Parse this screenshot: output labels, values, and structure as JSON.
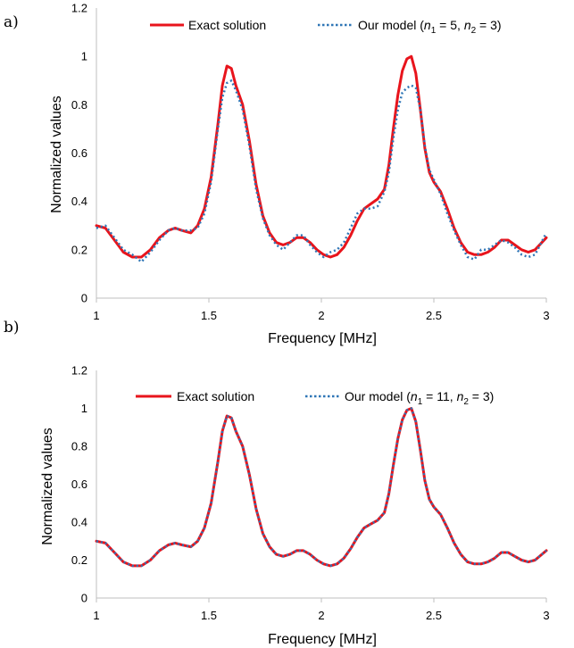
{
  "colors": {
    "exact": "#e8141c",
    "model": "#2e75b6"
  },
  "chart_data": [
    {
      "type": "line",
      "panel_label": "a)",
      "xlabel": "Frequency [MHz]",
      "ylabel": "Normalized values",
      "xlim": [
        1,
        3
      ],
      "ylim": [
        0,
        1.2
      ],
      "xticks": [
        "1",
        "1.5",
        "2",
        "2.5",
        "3"
      ],
      "yticks": [
        "0",
        "0.2",
        "0.4",
        "0.6",
        "0.8",
        "1",
        "1.2"
      ],
      "legend_position": "top",
      "series": [
        {
          "name": "Exact solution",
          "style": "solid",
          "x": [
            1.0,
            1.04,
            1.08,
            1.12,
            1.16,
            1.2,
            1.24,
            1.28,
            1.32,
            1.35,
            1.38,
            1.42,
            1.45,
            1.48,
            1.51,
            1.54,
            1.56,
            1.58,
            1.6,
            1.62,
            1.65,
            1.68,
            1.71,
            1.74,
            1.77,
            1.8,
            1.83,
            1.86,
            1.89,
            1.92,
            1.95,
            1.98,
            2.01,
            2.04,
            2.07,
            2.1,
            2.13,
            2.16,
            2.19,
            2.22,
            2.25,
            2.28,
            2.3,
            2.32,
            2.34,
            2.36,
            2.38,
            2.4,
            2.42,
            2.44,
            2.46,
            2.48,
            2.5,
            2.53,
            2.56,
            2.59,
            2.62,
            2.65,
            2.68,
            2.71,
            2.74,
            2.77,
            2.8,
            2.83,
            2.86,
            2.89,
            2.92,
            2.95,
            3.0
          ],
          "y": [
            0.3,
            0.29,
            0.24,
            0.19,
            0.17,
            0.17,
            0.2,
            0.25,
            0.28,
            0.29,
            0.28,
            0.27,
            0.3,
            0.37,
            0.5,
            0.72,
            0.88,
            0.96,
            0.95,
            0.88,
            0.8,
            0.65,
            0.47,
            0.34,
            0.27,
            0.23,
            0.22,
            0.23,
            0.25,
            0.25,
            0.23,
            0.2,
            0.18,
            0.17,
            0.18,
            0.21,
            0.26,
            0.32,
            0.37,
            0.39,
            0.41,
            0.45,
            0.55,
            0.7,
            0.84,
            0.94,
            0.99,
            1.0,
            0.93,
            0.78,
            0.62,
            0.52,
            0.48,
            0.44,
            0.37,
            0.29,
            0.23,
            0.19,
            0.18,
            0.18,
            0.19,
            0.21,
            0.24,
            0.24,
            0.22,
            0.2,
            0.19,
            0.2,
            0.25
          ]
        },
        {
          "name": "Our model (n1 = 5, n2 = 3)",
          "style": "dotted",
          "x": [
            1.0,
            1.04,
            1.08,
            1.12,
            1.16,
            1.2,
            1.24,
            1.28,
            1.32,
            1.35,
            1.38,
            1.42,
            1.45,
            1.48,
            1.51,
            1.54,
            1.56,
            1.58,
            1.6,
            1.62,
            1.65,
            1.68,
            1.71,
            1.74,
            1.77,
            1.8,
            1.83,
            1.86,
            1.89,
            1.92,
            1.95,
            1.98,
            2.01,
            2.04,
            2.07,
            2.1,
            2.13,
            2.16,
            2.19,
            2.22,
            2.25,
            2.28,
            2.3,
            2.32,
            2.34,
            2.36,
            2.38,
            2.4,
            2.42,
            2.44,
            2.46,
            2.48,
            2.5,
            2.53,
            2.56,
            2.59,
            2.62,
            2.65,
            2.68,
            2.71,
            2.74,
            2.77,
            2.8,
            2.83,
            2.86,
            2.89,
            2.92,
            2.95,
            3.0
          ],
          "y": [
            0.29,
            0.3,
            0.25,
            0.2,
            0.18,
            0.15,
            0.19,
            0.24,
            0.28,
            0.29,
            0.28,
            0.28,
            0.29,
            0.35,
            0.48,
            0.7,
            0.83,
            0.89,
            0.9,
            0.86,
            0.78,
            0.63,
            0.45,
            0.33,
            0.26,
            0.22,
            0.2,
            0.23,
            0.26,
            0.26,
            0.22,
            0.19,
            0.17,
            0.19,
            0.2,
            0.23,
            0.29,
            0.35,
            0.37,
            0.37,
            0.38,
            0.44,
            0.52,
            0.66,
            0.78,
            0.85,
            0.87,
            0.88,
            0.87,
            0.78,
            0.63,
            0.53,
            0.49,
            0.43,
            0.35,
            0.28,
            0.22,
            0.17,
            0.16,
            0.2,
            0.2,
            0.22,
            0.24,
            0.23,
            0.21,
            0.18,
            0.17,
            0.18,
            0.27
          ]
        }
      ]
    },
    {
      "type": "line",
      "panel_label": "b)",
      "xlabel": "Frequency [MHz]",
      "ylabel": "Normalized values",
      "xlim": [
        1,
        3
      ],
      "ylim": [
        0,
        1.2
      ],
      "xticks": [
        "1",
        "1.5",
        "2",
        "2.5",
        "3"
      ],
      "yticks": [
        "0",
        "0.2",
        "0.4",
        "0.6",
        "0.8",
        "1",
        "1.2"
      ],
      "legend_position": "top",
      "series": [
        {
          "name": "Exact solution",
          "style": "solid",
          "x": [
            1.0,
            1.04,
            1.08,
            1.12,
            1.16,
            1.2,
            1.24,
            1.28,
            1.32,
            1.35,
            1.38,
            1.42,
            1.45,
            1.48,
            1.51,
            1.54,
            1.56,
            1.58,
            1.6,
            1.62,
            1.65,
            1.68,
            1.71,
            1.74,
            1.77,
            1.8,
            1.83,
            1.86,
            1.89,
            1.92,
            1.95,
            1.98,
            2.01,
            2.04,
            2.07,
            2.1,
            2.13,
            2.16,
            2.19,
            2.22,
            2.25,
            2.28,
            2.3,
            2.32,
            2.34,
            2.36,
            2.38,
            2.4,
            2.42,
            2.44,
            2.46,
            2.48,
            2.5,
            2.53,
            2.56,
            2.59,
            2.62,
            2.65,
            2.68,
            2.71,
            2.74,
            2.77,
            2.8,
            2.83,
            2.86,
            2.89,
            2.92,
            2.95,
            3.0
          ],
          "y": [
            0.3,
            0.29,
            0.24,
            0.19,
            0.17,
            0.17,
            0.2,
            0.25,
            0.28,
            0.29,
            0.28,
            0.27,
            0.3,
            0.37,
            0.5,
            0.72,
            0.88,
            0.96,
            0.95,
            0.88,
            0.8,
            0.65,
            0.47,
            0.34,
            0.27,
            0.23,
            0.22,
            0.23,
            0.25,
            0.25,
            0.23,
            0.2,
            0.18,
            0.17,
            0.18,
            0.21,
            0.26,
            0.32,
            0.37,
            0.39,
            0.41,
            0.45,
            0.55,
            0.7,
            0.84,
            0.94,
            0.99,
            1.0,
            0.93,
            0.78,
            0.62,
            0.52,
            0.48,
            0.44,
            0.37,
            0.29,
            0.23,
            0.19,
            0.18,
            0.18,
            0.19,
            0.21,
            0.24,
            0.24,
            0.22,
            0.2,
            0.19,
            0.2,
            0.25
          ]
        },
        {
          "name": "Our model (n1 = 11, n2 = 3)",
          "style": "dotted",
          "x": [
            1.0,
            1.04,
            1.08,
            1.12,
            1.16,
            1.2,
            1.24,
            1.28,
            1.32,
            1.35,
            1.38,
            1.42,
            1.45,
            1.48,
            1.51,
            1.54,
            1.56,
            1.58,
            1.6,
            1.62,
            1.65,
            1.68,
            1.71,
            1.74,
            1.77,
            1.8,
            1.83,
            1.86,
            1.89,
            1.92,
            1.95,
            1.98,
            2.01,
            2.04,
            2.07,
            2.1,
            2.13,
            2.16,
            2.19,
            2.22,
            2.25,
            2.28,
            2.3,
            2.32,
            2.34,
            2.36,
            2.38,
            2.4,
            2.42,
            2.44,
            2.46,
            2.48,
            2.5,
            2.53,
            2.56,
            2.59,
            2.62,
            2.65,
            2.68,
            2.71,
            2.74,
            2.77,
            2.8,
            2.83,
            2.86,
            2.89,
            2.92,
            2.95,
            3.0
          ],
          "y": [
            0.3,
            0.29,
            0.24,
            0.19,
            0.17,
            0.17,
            0.2,
            0.25,
            0.28,
            0.29,
            0.28,
            0.27,
            0.3,
            0.37,
            0.5,
            0.72,
            0.88,
            0.96,
            0.95,
            0.88,
            0.8,
            0.65,
            0.47,
            0.34,
            0.27,
            0.23,
            0.22,
            0.23,
            0.25,
            0.25,
            0.23,
            0.2,
            0.18,
            0.17,
            0.18,
            0.21,
            0.26,
            0.32,
            0.37,
            0.39,
            0.41,
            0.45,
            0.55,
            0.7,
            0.84,
            0.94,
            0.99,
            1.0,
            0.93,
            0.78,
            0.62,
            0.52,
            0.48,
            0.44,
            0.37,
            0.29,
            0.23,
            0.19,
            0.18,
            0.18,
            0.19,
            0.21,
            0.24,
            0.24,
            0.22,
            0.2,
            0.19,
            0.2,
            0.25
          ]
        }
      ]
    }
  ],
  "legend_text": {
    "a": {
      "exact": "Exact solution",
      "model_prefix": "Our model (",
      "n1_val": " = 5, ",
      "n2_val": " = 3)"
    },
    "b": {
      "exact": "Exact solution",
      "model_prefix": "Our model (",
      "n1_val": " = 11, ",
      "n2_val": " = 3)"
    },
    "n": "n",
    "sub1": "1",
    "sub2": "2"
  }
}
